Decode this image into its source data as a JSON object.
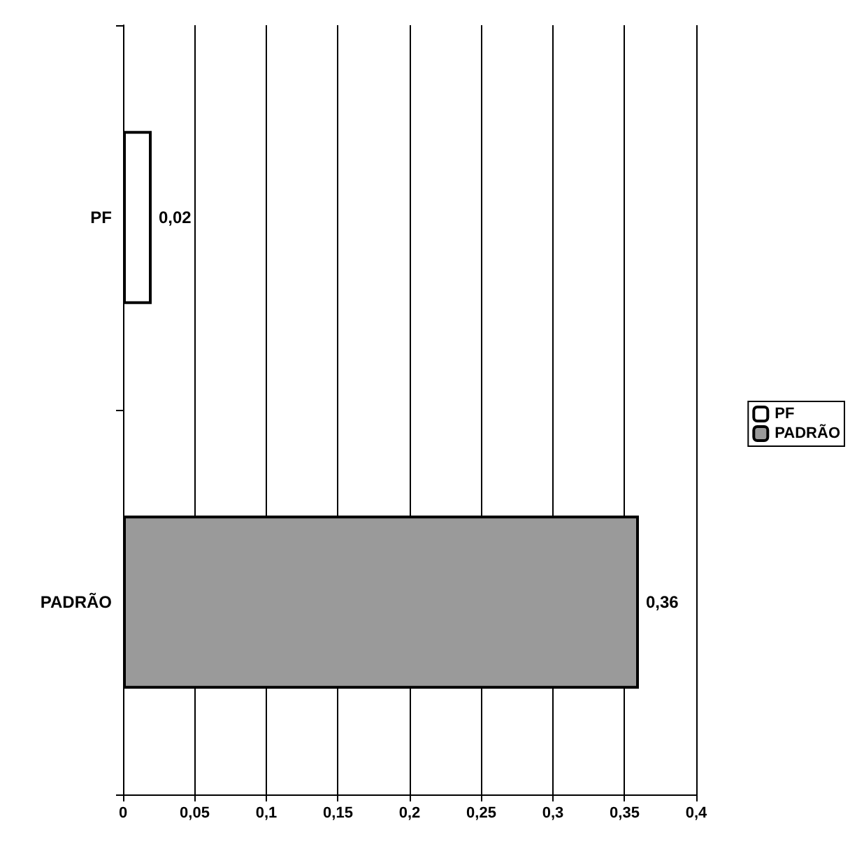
{
  "chart_data": {
    "type": "bar",
    "orientation": "horizontal",
    "categories": [
      "PF",
      "PADRÃO"
    ],
    "series": [
      {
        "name": "PF",
        "color": "#ffffff",
        "values": [
          0.02,
          null
        ],
        "value_labels": [
          "0,02",
          null
        ]
      },
      {
        "name": "PADRÃO",
        "color": "#9a9a9a",
        "values": [
          null,
          0.36
        ],
        "value_labels": [
          null,
          "0,36"
        ]
      }
    ],
    "xlim": [
      0,
      0.4
    ],
    "xticks": [
      0,
      {
        "value": 0.05,
        "label": "0,05"
      },
      {
        "value": 0.1,
        "label": "0,1"
      },
      {
        "value": 0.15,
        "label": "0,15"
      },
      {
        "value": 0.2,
        "label": "0,2"
      },
      {
        "value": 0.25,
        "label": "0,25"
      },
      {
        "value": 0.3,
        "label": "0,3"
      },
      {
        "value": 0.35,
        "label": "0,35"
      },
      {
        "value": 0.4,
        "label": "0,4"
      }
    ],
    "grid": "x",
    "legend": "right"
  }
}
